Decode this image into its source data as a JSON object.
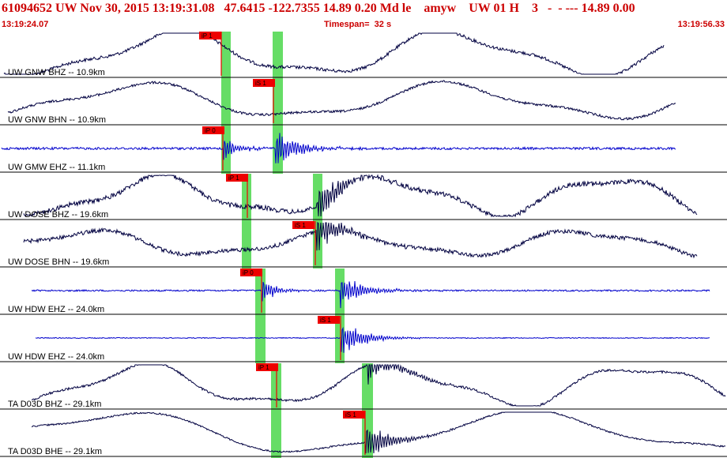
{
  "header": {
    "title": "61094652 UW Nov 30, 2015 13:19:31.08   47.6415 -122.7355 14.89 0.20 Md le    amyw    UW 01 H    3   -  - --- 14.89 0.00",
    "start_time": "13:19:24.07",
    "timespan": "Timespan=  32 s",
    "end_time": "13:19:56.33"
  },
  "colors": {
    "title": "#cc0000",
    "trace_broadband": "#000040",
    "trace_short_period": "#0000cc",
    "pick_flag": "#ee0000",
    "pick_window": "#66dd66",
    "divider": "#000000"
  },
  "traces": [
    {
      "label": "UW GNW BHZ -- 10.9km",
      "kind": "broadband",
      "pick_label": "iP 1"
    },
    {
      "label": "UW GNW BHN -- 10.9km",
      "kind": "broadband",
      "pick_label": "iS 1"
    },
    {
      "label": "UW GMW EHZ -- 11.1km",
      "kind": "short_period",
      "pick_label": "iP 0"
    },
    {
      "label": "UW DOSE BHZ -- 19.6km",
      "kind": "broadband",
      "pick_label": "iP 1"
    },
    {
      "label": "UW DOSE BHN -- 19.6km",
      "kind": "broadband",
      "pick_label": "iS 1"
    },
    {
      "label": "UW HDW EHZ -- 24.0km",
      "kind": "short_period",
      "pick_label": "iP 0"
    },
    {
      "label": "UW HDW EHZ -- 24.0km",
      "kind": "short_period",
      "pick_label": "iS 1"
    },
    {
      "label": "TA D03D BHZ -- 29.1km",
      "kind": "broadband",
      "pick_label": "iP 1"
    },
    {
      "label": "TA D03D BHE -- 29.1km",
      "kind": "broadband",
      "pick_label": "iS 1"
    }
  ]
}
